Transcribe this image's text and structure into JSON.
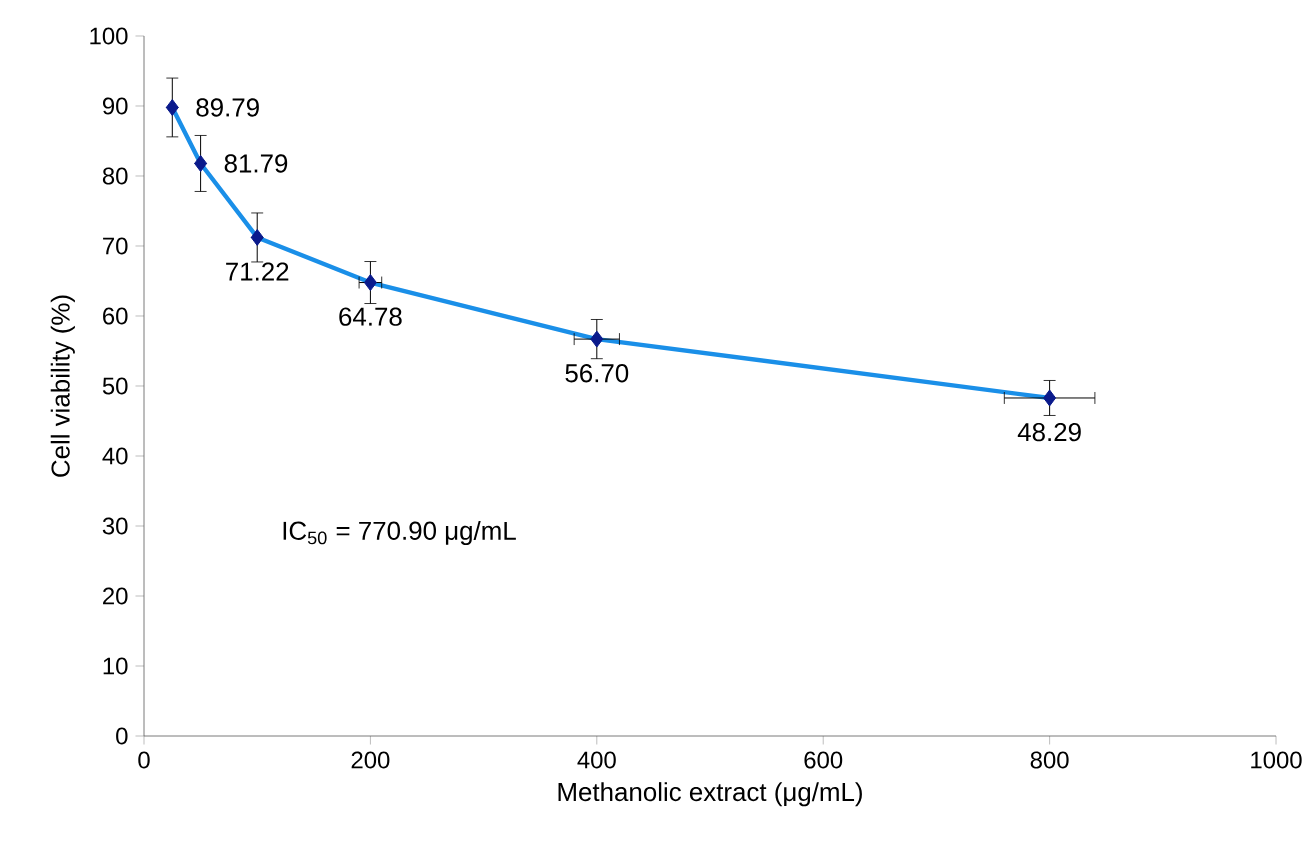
{
  "chart_data": {
    "type": "line",
    "xlabel": "Methanolic extract (μg/mL)",
    "ylabel": "Cell viability (%)",
    "x": [
      25,
      50,
      100,
      200,
      400,
      800
    ],
    "series": [
      {
        "color": "#1a8fe8",
        "values": [
          89.79,
          81.79,
          71.22,
          64.78,
          56.7,
          48.29
        ],
        "errors": [
          4.2,
          4,
          3.5,
          3,
          2.8,
          2.5
        ],
        "xerrors": [
          null,
          null,
          null,
          10,
          20,
          40
        ],
        "value_labels": [
          "89.79",
          "81.79",
          "71.22",
          "64.78",
          "56.70",
          "48.29"
        ]
      }
    ],
    "marker": "diamond",
    "xlim": [
      0,
      1000
    ],
    "xticks": [
      0,
      200,
      400,
      600,
      800,
      1000
    ],
    "ylim": [
      0,
      100
    ],
    "yticks": [
      0,
      10,
      20,
      30,
      40,
      50,
      60,
      70,
      80,
      90,
      100
    ],
    "annotations": [
      "IC$_{50}$ = 770.90 μg/mL"
    ]
  }
}
